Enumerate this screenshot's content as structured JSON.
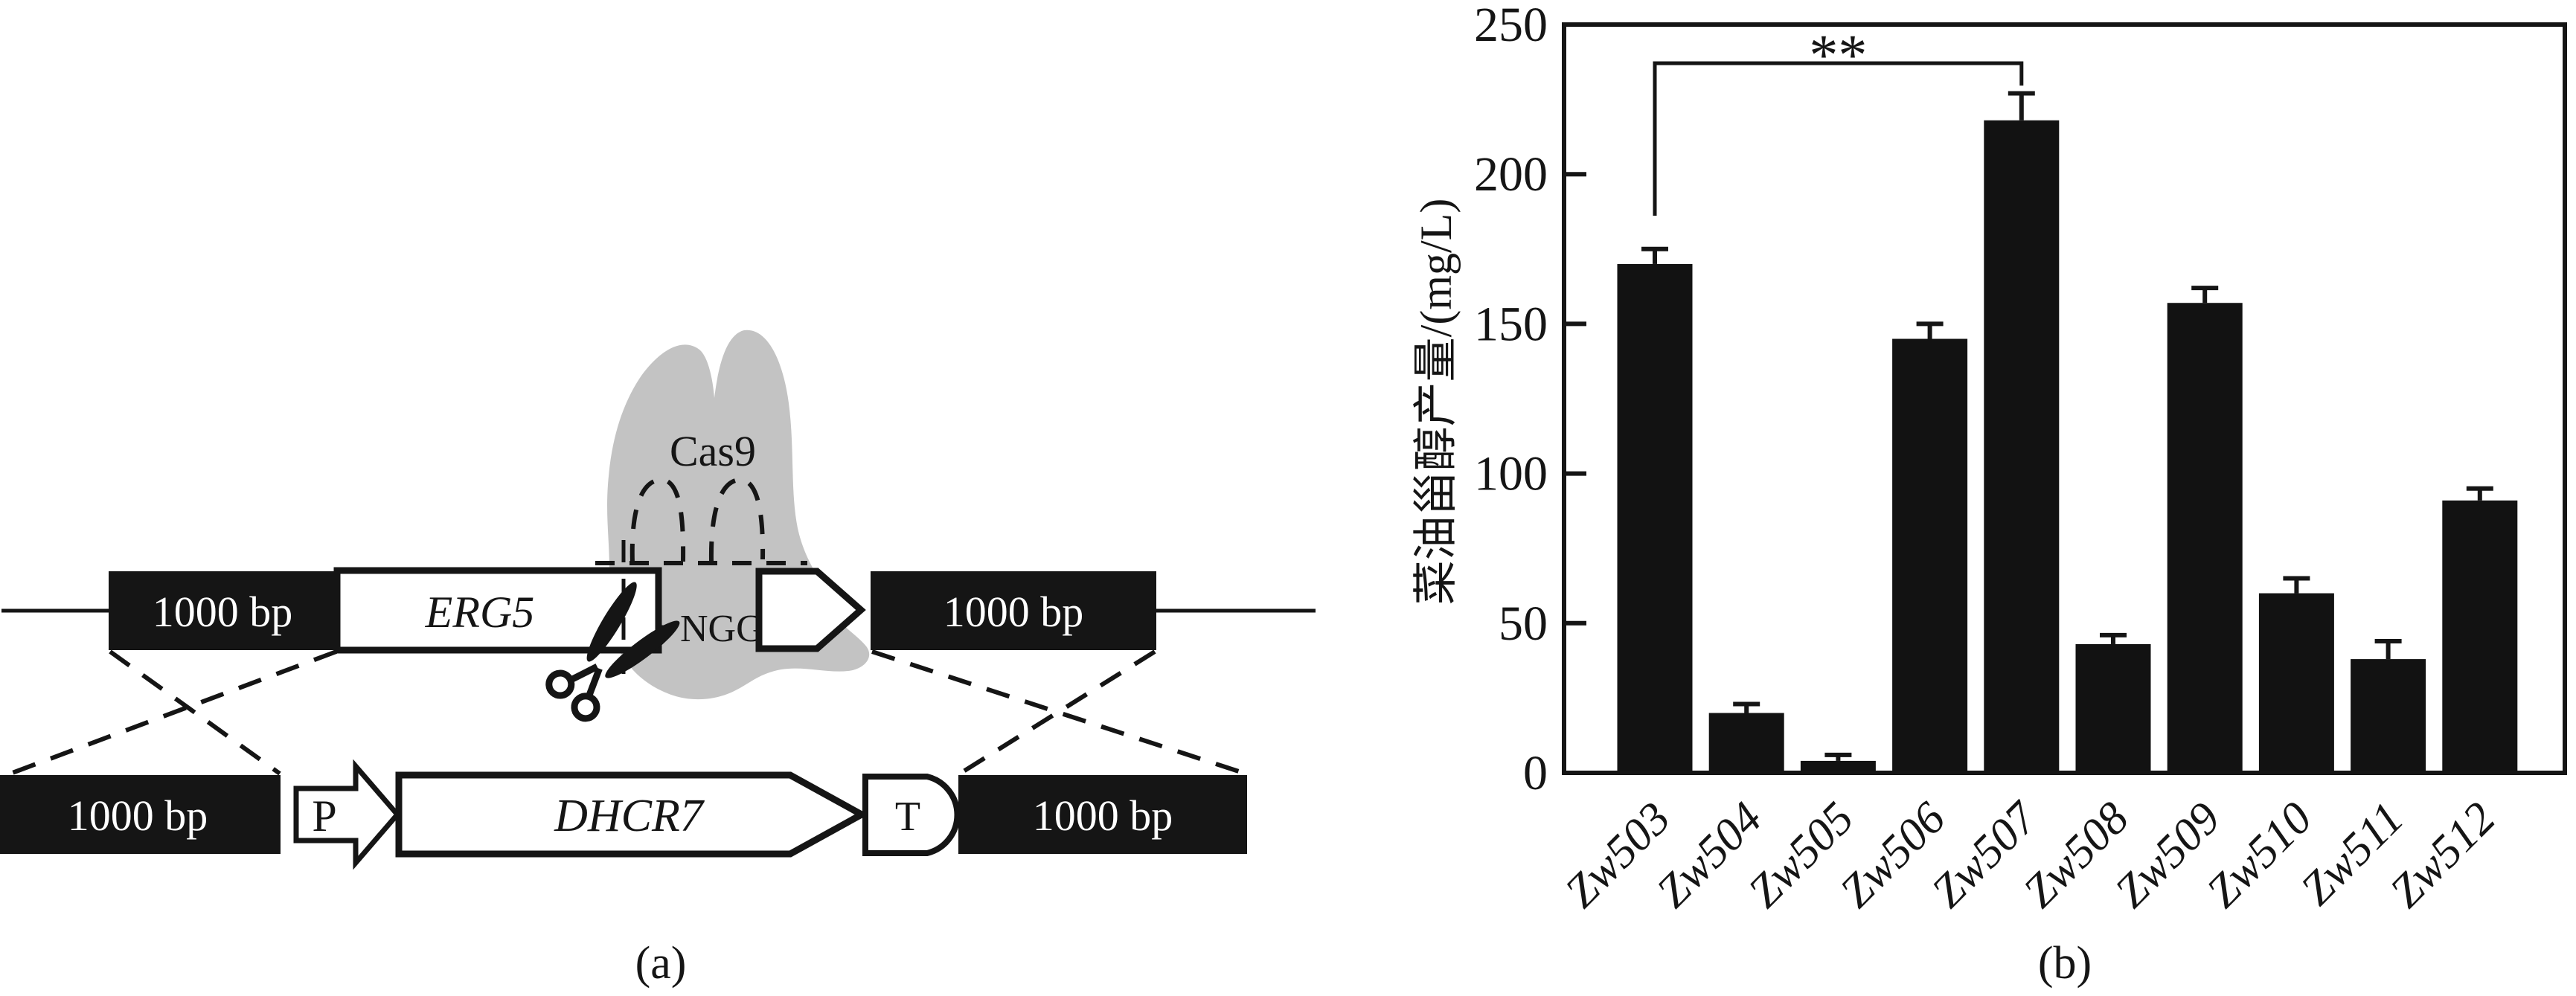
{
  "figure": {
    "background": "#ffffff",
    "ink_color": "#151515",
    "panel_a": {
      "label": "(a)",
      "cas9_label": "Cas9",
      "pam_label": "NGG",
      "cas9_blob_color": "#c3c3c3",
      "top_row": {
        "left_homology_label": "1000 bp",
        "gene_label": "ERG5",
        "right_homology_label": "1000 bp"
      },
      "bottom_row": {
        "left_homology_label": "1000 bp",
        "promoter_label": "P",
        "gene_label": "DHCR7",
        "terminator_label": "T",
        "right_homology_label": "1000 bp"
      }
    },
    "panel_b": {
      "label": "(b)"
    }
  },
  "chart_data": {
    "type": "bar",
    "categories": [
      "Zw503",
      "Zw504",
      "Zw505",
      "Zw506",
      "Zw507",
      "Zw508",
      "Zw509",
      "Zw510",
      "Zw511",
      "Zw512"
    ],
    "values": [
      170,
      20,
      4,
      145,
      218,
      43,
      157,
      60,
      38,
      91
    ],
    "errors": [
      5,
      3,
      2,
      5,
      9,
      3,
      5,
      5,
      6,
      4
    ],
    "ylabel": "菜油甾醇产量/(mg/L)",
    "ylim": [
      0,
      250
    ],
    "yticks": [
      0,
      50,
      100,
      150,
      200,
      250
    ],
    "bar_color": "#121212",
    "grid": false,
    "significance": {
      "from": "Zw503",
      "to": "Zw507",
      "label": "**"
    }
  }
}
